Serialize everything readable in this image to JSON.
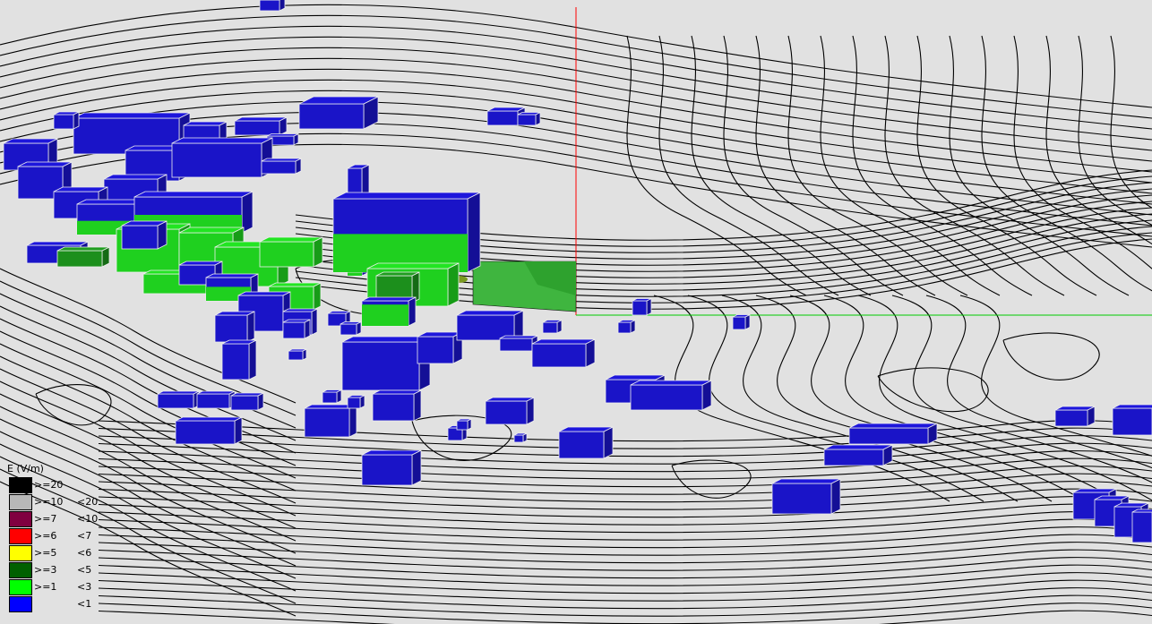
{
  "viewport": {
    "background": "#e1e1e1",
    "axis_vertical_color": "#ff0000",
    "axis_horizontal_color": "#00cc00"
  },
  "legend": {
    "title": "E (V/m)",
    "items": [
      {
        "color": "#000000",
        "low": ">=20",
        "high": ""
      },
      {
        "color": "#b8b8b8",
        "low": ">=10",
        "high": "<20"
      },
      {
        "color": "#800040",
        "low": ">=7",
        "high": "<10"
      },
      {
        "color": "#ff0000",
        "low": ">=6",
        "high": "<7"
      },
      {
        "color": "#ffff00",
        "low": ">=5",
        "high": "<6"
      },
      {
        "color": "#006000",
        "low": ">=3",
        "high": "<5"
      },
      {
        "color": "#00ff00",
        "low": ">=1",
        "high": "<3"
      },
      {
        "color": "#0000ff",
        "low": "",
        "high": "<1"
      }
    ]
  }
}
